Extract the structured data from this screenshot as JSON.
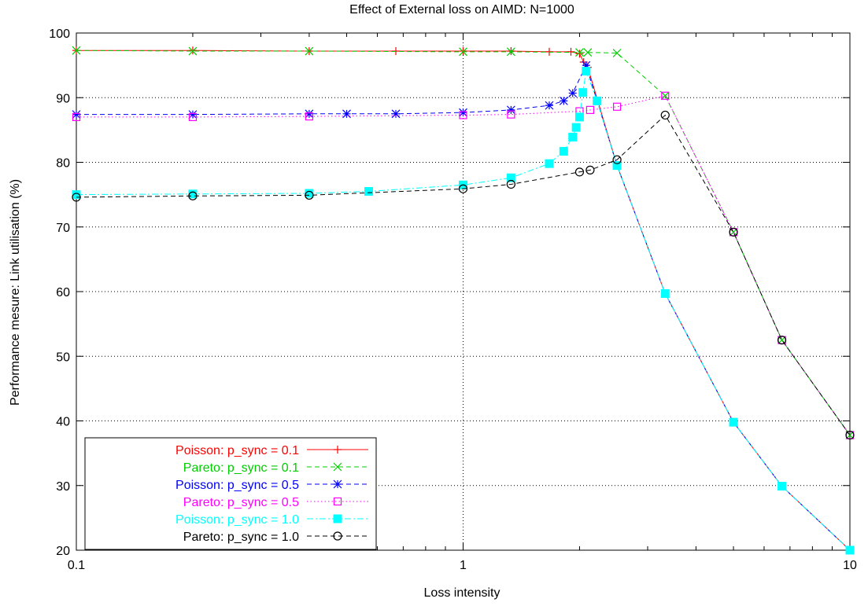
{
  "chart_data": {
    "type": "line",
    "title": "Effect of External loss on AIMD: N=1000",
    "xlabel": "Loss intensity",
    "ylabel": "Performance mesure: Link utilisation (%)",
    "x_scale": "log",
    "xlim": [
      0.1,
      10
    ],
    "ylim": [
      20,
      100
    ],
    "x_ticks": [
      {
        "value": 0.1,
        "label": "0.1"
      },
      {
        "value": 1,
        "label": "1"
      },
      {
        "value": 10,
        "label": "10"
      }
    ],
    "y_ticks": [
      {
        "value": 20,
        "label": "20"
      },
      {
        "value": 30,
        "label": "30"
      },
      {
        "value": 40,
        "label": "40"
      },
      {
        "value": 50,
        "label": "50"
      },
      {
        "value": 60,
        "label": "60"
      },
      {
        "value": 70,
        "label": "70"
      },
      {
        "value": 80,
        "label": "80"
      },
      {
        "value": 90,
        "label": "90"
      },
      {
        "value": 100,
        "label": "100"
      }
    ],
    "grid": true,
    "legend_position": "bottom-left",
    "series": [
      {
        "name": "Poisson: p_sync = 0.1",
        "color": "#ff0000",
        "marker": "plus",
        "dash": "solid",
        "x": [
          0.1,
          0.2,
          0.4,
          0.67,
          1.0,
          1.33,
          1.67,
          1.9,
          2.0,
          2.05,
          2.1,
          2.5,
          3.33,
          5.0,
          6.67,
          10
        ],
        "y": [
          97.3,
          97.3,
          97.2,
          97.2,
          97.2,
          97.2,
          97.1,
          97.1,
          96.8,
          95.5,
          94.7,
          79.5,
          59.7,
          39.8,
          29.9,
          20.0
        ]
      },
      {
        "name": "Pareto: p_sync = 0.1",
        "color": "#00cc00",
        "marker": "x",
        "dash": "dashed",
        "x": [
          0.1,
          0.2,
          0.4,
          1.0,
          1.33,
          2.0,
          2.1,
          2.5,
          3.33,
          5.0,
          6.67,
          10
        ],
        "y": [
          97.3,
          97.2,
          97.2,
          97.1,
          97.1,
          97.0,
          97.0,
          96.9,
          90.3,
          69.2,
          52.5,
          37.8
        ]
      },
      {
        "name": "Poisson: p_sync = 0.5",
        "color": "#0000ff",
        "marker": "star",
        "dash": "dashed",
        "x": [
          0.1,
          0.2,
          0.4,
          0.5,
          0.67,
          1.0,
          1.33,
          1.67,
          1.82,
          1.92,
          2.08,
          2.5,
          3.33,
          5.0,
          6.67,
          10
        ],
        "y": [
          87.4,
          87.4,
          87.5,
          87.5,
          87.5,
          87.7,
          88.1,
          88.8,
          89.5,
          90.7,
          95.0,
          79.5,
          59.7,
          39.8,
          29.9,
          20.0
        ]
      },
      {
        "name": "Pareto: p_sync = 0.5",
        "color": "#ff00ff",
        "marker": "square-open",
        "dash": "dotted",
        "x": [
          0.1,
          0.2,
          0.4,
          1.0,
          1.33,
          2.0,
          2.13,
          2.5,
          3.33,
          5.0,
          6.67,
          10
        ],
        "y": [
          87.0,
          87.0,
          87.1,
          87.3,
          87.4,
          87.9,
          88.1,
          88.6,
          90.3,
          69.2,
          52.5,
          37.8
        ]
      },
      {
        "name": "Poisson: p_sync = 1.0",
        "color": "#00ffff",
        "marker": "square-filled",
        "dash": "dashdot",
        "x": [
          0.1,
          0.2,
          0.4,
          0.57,
          1.0,
          1.33,
          1.67,
          1.82,
          1.92,
          1.96,
          2.0,
          2.04,
          2.08,
          2.22,
          2.5,
          3.33,
          5.0,
          6.67,
          10
        ],
        "y": [
          75.0,
          75.1,
          75.2,
          75.5,
          76.5,
          77.6,
          79.8,
          81.7,
          83.9,
          85.4,
          87.0,
          90.8,
          94.1,
          89.5,
          79.5,
          59.7,
          39.8,
          29.9,
          20.0
        ]
      },
      {
        "name": "Pareto: p_sync = 1.0",
        "color": "#000000",
        "marker": "circle-open",
        "dash": "dashed",
        "x": [
          0.1,
          0.2,
          0.4,
          1.0,
          1.33,
          2.0,
          2.13,
          2.5,
          3.33,
          5.0,
          6.67,
          10
        ],
        "y": [
          74.6,
          74.8,
          74.9,
          75.9,
          76.6,
          78.5,
          78.8,
          80.4,
          87.3,
          69.2,
          52.5,
          37.8
        ]
      }
    ]
  }
}
